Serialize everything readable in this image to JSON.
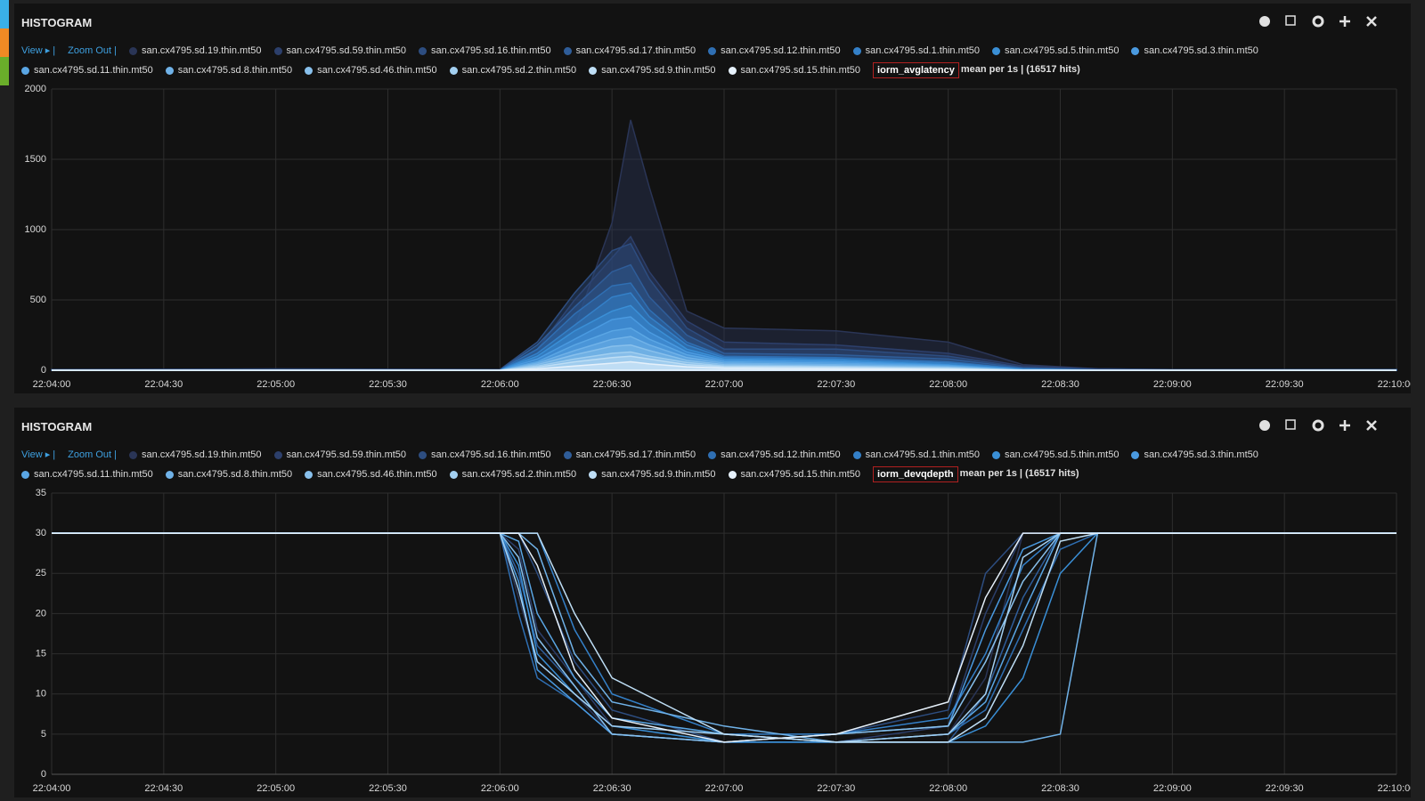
{
  "chart_data": [
    {
      "type": "area",
      "panel_title": "HISTOGRAM",
      "view_label": "View ▸ |",
      "zoom_label": "Zoom Out |",
      "metric": "iorm_avglatency",
      "summary": "mean per 1s | (16517 hits)",
      "x": [
        "22:04:00",
        "22:05:00",
        "22:06:00",
        "22:06:10",
        "22:06:20",
        "22:06:30",
        "22:06:35",
        "22:06:40",
        "22:06:50",
        "22:07:00",
        "22:07:30",
        "22:08:00",
        "22:08:20",
        "22:08:40",
        "22:09:00",
        "22:10:00"
      ],
      "xlim": [
        "22:04:00",
        "22:10:00"
      ],
      "xticks": [
        "22:04:00",
        "22:04:30",
        "22:05:00",
        "22:05:30",
        "22:06:00",
        "22:06:30",
        "22:07:00",
        "22:07:30",
        "22:08:00",
        "22:08:30",
        "22:09:00",
        "22:09:30",
        "22:10:00"
      ],
      "ylim": [
        0,
        2000
      ],
      "yticks": [
        0,
        500,
        1000,
        1500,
        2000
      ],
      "grid": true,
      "series": [
        {
          "name": "san.cx4795.sd.19.thin.mt50",
          "color": "#2a3556",
          "values": [
            5,
            10,
            5,
            60,
            300,
            1050,
            1780,
            1300,
            420,
            300,
            280,
            200,
            40,
            10,
            5,
            5
          ]
        },
        {
          "name": "san.cx4795.sd.59.thin.mt50",
          "color": "#2c3f6b",
          "values": [
            5,
            5,
            5,
            150,
            500,
            800,
            950,
            700,
            350,
            200,
            180,
            120,
            30,
            10,
            5,
            5
          ]
        },
        {
          "name": "san.cx4795.sd.16.thin.mt50",
          "color": "#2d4d80",
          "values": [
            5,
            5,
            5,
            200,
            550,
            850,
            900,
            650,
            300,
            150,
            150,
            100,
            20,
            5,
            5,
            5
          ]
        },
        {
          "name": "san.cx4795.sd.17.thin.mt50",
          "color": "#2f5d99",
          "values": [
            0,
            5,
            0,
            180,
            450,
            700,
            750,
            520,
            250,
            120,
            110,
            80,
            15,
            5,
            0,
            5
          ]
        },
        {
          "name": "san.cx4795.sd.12.thin.mt50",
          "color": "#2f6fb3",
          "values": [
            0,
            0,
            0,
            150,
            400,
            600,
            620,
            430,
            200,
            100,
            90,
            60,
            10,
            0,
            0,
            0
          ]
        },
        {
          "name": "san.cx4795.sd.1.thin.mt50",
          "color": "#3480c8",
          "values": [
            0,
            0,
            0,
            120,
            320,
            520,
            550,
            380,
            180,
            90,
            80,
            50,
            10,
            0,
            0,
            0
          ]
        },
        {
          "name": "san.cx4795.sd.5.thin.mt50",
          "color": "#3a8fd6",
          "values": [
            0,
            0,
            0,
            100,
            280,
            420,
            460,
            330,
            150,
            80,
            70,
            40,
            5,
            0,
            0,
            0
          ]
        },
        {
          "name": "san.cx4795.sd.3.thin.mt50",
          "color": "#4a9ae0",
          "values": [
            0,
            0,
            0,
            80,
            220,
            360,
            380,
            270,
            130,
            70,
            60,
            35,
            5,
            0,
            0,
            0
          ]
        },
        {
          "name": "san.cx4795.sd.11.thin.mt50",
          "color": "#5aa6e4",
          "values": [
            0,
            0,
            0,
            60,
            180,
            280,
            300,
            220,
            110,
            60,
            50,
            30,
            5,
            0,
            0,
            0
          ]
        },
        {
          "name": "san.cx4795.sd.8.thin.mt50",
          "color": "#70b2e8",
          "values": [
            0,
            0,
            0,
            50,
            140,
            220,
            240,
            180,
            90,
            50,
            40,
            25,
            0,
            0,
            0,
            0
          ]
        },
        {
          "name": "san.cx4795.sd.46.thin.mt50",
          "color": "#88c0ec",
          "values": [
            0,
            0,
            0,
            40,
            110,
            170,
            180,
            140,
            70,
            40,
            30,
            20,
            0,
            0,
            0,
            0
          ]
        },
        {
          "name": "san.cx4795.sd.2.thin.mt50",
          "color": "#a2cff0",
          "values": [
            0,
            0,
            0,
            30,
            80,
            120,
            130,
            100,
            55,
            30,
            25,
            15,
            0,
            0,
            0,
            0
          ]
        },
        {
          "name": "san.cx4795.sd.9.thin.mt50",
          "color": "#bedef5",
          "values": [
            0,
            0,
            0,
            20,
            60,
            90,
            100,
            80,
            40,
            25,
            20,
            10,
            0,
            0,
            0,
            0
          ]
        },
        {
          "name": "san.cx4795.sd.15.thin.mt50",
          "color": "#e6f1fb",
          "values": [
            0,
            0,
            0,
            10,
            30,
            50,
            60,
            45,
            25,
            15,
            10,
            5,
            0,
            0,
            0,
            0
          ]
        }
      ]
    },
    {
      "type": "line",
      "panel_title": "HISTOGRAM",
      "view_label": "View ▸ |",
      "zoom_label": "Zoom Out |",
      "metric": "iorm_devqdepth",
      "summary": "mean per 1s | (16517 hits)",
      "x": [
        "22:04:00",
        "22:06:00",
        "22:06:05",
        "22:06:10",
        "22:06:20",
        "22:06:30",
        "22:07:00",
        "22:07:30",
        "22:08:00",
        "22:08:10",
        "22:08:20",
        "22:08:30",
        "22:08:40",
        "22:10:00"
      ],
      "xlim": [
        "22:04:00",
        "22:10:00"
      ],
      "xticks": [
        "22:04:00",
        "22:04:30",
        "22:05:00",
        "22:05:30",
        "22:06:00",
        "22:06:30",
        "22:07:00",
        "22:07:30",
        "22:08:00",
        "22:08:30",
        "22:09:00",
        "22:09:30",
        "22:10:00"
      ],
      "ylim": [
        0,
        35
      ],
      "yticks": [
        0,
        5,
        10,
        15,
        20,
        25,
        30,
        35
      ],
      "grid": true,
      "series": [
        {
          "name": "san.cx4795.sd.19.thin.mt50",
          "color": "#2a3556",
          "values": [
            30,
            30,
            22,
            14,
            10,
            5,
            4,
            4,
            5,
            12,
            30,
            30,
            30,
            30
          ]
        },
        {
          "name": "san.cx4795.sd.59.thin.mt50",
          "color": "#2c3f6b",
          "values": [
            30,
            30,
            28,
            18,
            12,
            6,
            5,
            4,
            6,
            20,
            30,
            30,
            30,
            30
          ]
        },
        {
          "name": "san.cx4795.sd.16.thin.mt50",
          "color": "#2d4d80",
          "values": [
            30,
            30,
            30,
            25,
            14,
            8,
            4,
            5,
            8,
            25,
            30,
            30,
            30,
            30
          ]
        },
        {
          "name": "san.cx4795.sd.17.thin.mt50",
          "color": "#2f5d99",
          "values": [
            30,
            30,
            25,
            16,
            11,
            5,
            4,
            4,
            4,
            10,
            22,
            30,
            30,
            30
          ]
        },
        {
          "name": "san.cx4795.sd.12.thin.mt50",
          "color": "#2f6fb3",
          "values": [
            30,
            30,
            20,
            12,
            9,
            5,
            4,
            4,
            5,
            8,
            18,
            28,
            30,
            30
          ]
        },
        {
          "name": "san.cx4795.sd.1.thin.mt50",
          "color": "#3480c8",
          "values": [
            30,
            30,
            30,
            30,
            18,
            10,
            5,
            5,
            7,
            15,
            26,
            30,
            30,
            30
          ]
        },
        {
          "name": "san.cx4795.sd.5.thin.mt50",
          "color": "#3a8fd6",
          "values": [
            30,
            30,
            26,
            15,
            10,
            6,
            4,
            4,
            4,
            6,
            12,
            25,
            30,
            30
          ]
        },
        {
          "name": "san.cx4795.sd.3.thin.mt50",
          "color": "#4a9ae0",
          "values": [
            30,
            30,
            24,
            13,
            9,
            5,
            4,
            5,
            6,
            18,
            28,
            30,
            30,
            30
          ]
        },
        {
          "name": "san.cx4795.sd.11.thin.mt50",
          "color": "#5aa6e4",
          "values": [
            30,
            30,
            29,
            20,
            12,
            7,
            5,
            4,
            5,
            9,
            20,
            30,
            30,
            30
          ]
        },
        {
          "name": "san.cx4795.sd.8.thin.mt50",
          "color": "#70b2e8",
          "values": [
            30,
            30,
            30,
            28,
            15,
            9,
            6,
            4,
            4,
            4,
            4,
            5,
            30,
            30
          ]
        },
        {
          "name": "san.cx4795.sd.46.thin.mt50",
          "color": "#88c0ec",
          "values": [
            30,
            30,
            27,
            17,
            11,
            5,
            4,
            5,
            6,
            14,
            24,
            30,
            30,
            30
          ]
        },
        {
          "name": "san.cx4795.sd.2.thin.mt50",
          "color": "#a2cff0",
          "values": [
            30,
            30,
            23,
            14,
            10,
            6,
            5,
            4,
            5,
            10,
            27,
            30,
            30,
            30
          ]
        },
        {
          "name": "san.cx4795.sd.9.thin.mt50",
          "color": "#bedef5",
          "values": [
            30,
            30,
            30,
            30,
            20,
            12,
            5,
            4,
            4,
            7,
            16,
            29,
            30,
            30
          ]
        },
        {
          "name": "san.cx4795.sd.15.thin.mt50",
          "color": "#e6f1fb",
          "values": [
            30,
            30,
            30,
            26,
            13,
            7,
            4,
            5,
            9,
            22,
            30,
            30,
            30,
            30
          ]
        }
      ]
    }
  ]
}
